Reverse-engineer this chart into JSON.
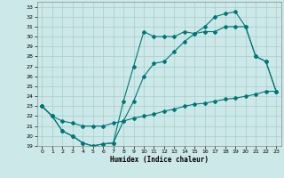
{
  "xlabel": "Humidex (Indice chaleur)",
  "background_color": "#cce8e8",
  "grid_color": "#aacccc",
  "line_color": "#007777",
  "xlim": [
    -0.5,
    23.5
  ],
  "ylim": [
    19,
    33.5
  ],
  "xticks": [
    0,
    1,
    2,
    3,
    4,
    5,
    6,
    7,
    8,
    9,
    10,
    11,
    12,
    13,
    14,
    15,
    16,
    17,
    18,
    19,
    20,
    21,
    22,
    23
  ],
  "yticks": [
    19,
    20,
    21,
    22,
    23,
    24,
    25,
    26,
    27,
    28,
    29,
    30,
    31,
    32,
    33
  ],
  "line1_x": [
    0,
    1,
    2,
    3,
    4,
    5,
    6,
    7,
    8,
    9,
    10,
    11,
    12,
    13,
    14,
    15,
    16,
    17,
    18,
    19,
    20,
    21,
    22,
    23
  ],
  "line1_y": [
    23.0,
    22.0,
    20.5,
    20.0,
    19.3,
    19.0,
    19.2,
    19.3,
    21.5,
    23.5,
    26.0,
    27.3,
    27.5,
    28.5,
    29.5,
    30.3,
    30.5,
    30.5,
    31.0,
    31.0,
    31.0,
    28.0,
    27.5,
    24.5
  ],
  "line2_x": [
    0,
    1,
    2,
    3,
    4,
    5,
    6,
    7,
    8,
    9,
    10,
    11,
    12,
    13,
    14,
    15,
    16,
    17,
    18,
    19,
    20,
    21,
    22,
    23
  ],
  "line2_y": [
    23.0,
    22.0,
    20.5,
    20.0,
    19.3,
    19.0,
    19.2,
    19.3,
    23.5,
    27.0,
    30.5,
    30.0,
    30.0,
    30.0,
    30.5,
    30.3,
    31.0,
    32.0,
    32.3,
    32.5,
    31.0,
    28.0,
    27.5,
    24.5
  ],
  "line3_x": [
    0,
    1,
    2,
    3,
    4,
    5,
    6,
    7,
    8,
    9,
    10,
    11,
    12,
    13,
    14,
    15,
    16,
    17,
    18,
    19,
    20,
    21,
    22,
    23
  ],
  "line3_y": [
    23.0,
    22.0,
    21.5,
    21.3,
    21.0,
    21.0,
    21.0,
    21.3,
    21.5,
    21.8,
    22.0,
    22.2,
    22.5,
    22.7,
    23.0,
    23.2,
    23.3,
    23.5,
    23.7,
    23.8,
    24.0,
    24.2,
    24.5,
    24.5
  ]
}
